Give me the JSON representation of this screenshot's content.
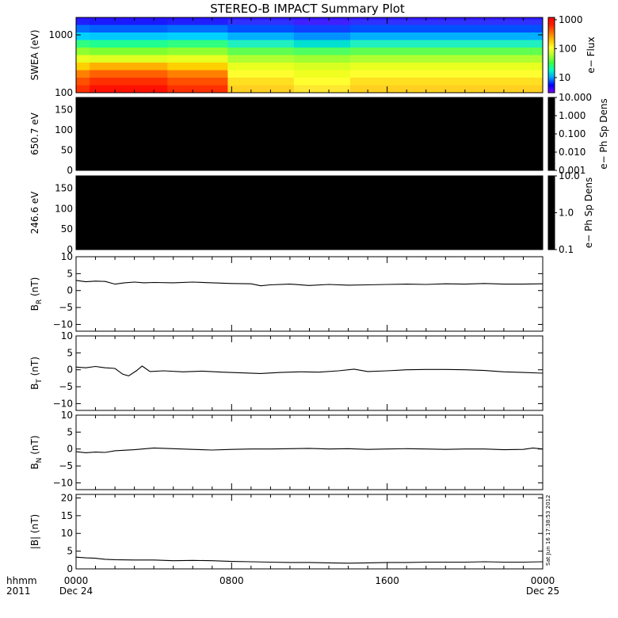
{
  "title": "STEREO-B IMPACT Summary Plot",
  "timestamp_vertical": "Sat Jun 16 17:38:53 2012",
  "time_axis": {
    "row1_label": "hhmm",
    "row2_label": "2011",
    "ticks": [
      {
        "t": 0,
        "label": "0000",
        "sublabel": "Dec 24"
      },
      {
        "t": 8,
        "label": "0800",
        "sublabel": ""
      },
      {
        "t": 16,
        "label": "1600",
        "sublabel": ""
      },
      {
        "t": 24,
        "label": "0000",
        "sublabel": "Dec 25"
      }
    ],
    "range_hours": [
      0,
      24
    ]
  },
  "colors": {
    "line": "#000000",
    "spectrogram_colormap": [
      "#7f00ff",
      "#0000ff",
      "#00a0ff",
      "#00ffc0",
      "#40ff40",
      "#b0ff30",
      "#ffff30",
      "#ffc000",
      "#ff7000",
      "#ff2000",
      "#ff0000"
    ]
  },
  "chart_data": [
    {
      "type": "heatmap",
      "ylabel": "SWEA (eV)",
      "y_scale": "log",
      "ylim": [
        100,
        2000
      ],
      "yticks": [
        "100",
        "1000"
      ],
      "colorbar": {
        "label": "e− Flux",
        "scale": "log",
        "range": [
          3,
          1200
        ],
        "ticks": [
          "10",
          "100",
          "1000"
        ]
      },
      "time_segments": [
        {
          "t": [
            0,
            0.7
          ],
          "level": "high"
        },
        {
          "t": [
            0.7,
            4.7
          ],
          "level": "very-high"
        },
        {
          "t": [
            4.7,
            7.8
          ],
          "level": "high"
        },
        {
          "t": [
            7.8,
            11.2
          ],
          "level": "medium"
        },
        {
          "t": [
            11.2,
            14.1
          ],
          "level": "medium-low"
        },
        {
          "t": [
            14.1,
            24
          ],
          "level": "medium"
        }
      ]
    },
    {
      "type": "heatmap",
      "ylabel": "650.7 eV",
      "ylim": [
        0,
        180
      ],
      "yticks": [
        "0",
        "50",
        "100",
        "150"
      ],
      "fill": "#000000",
      "colorbar": {
        "label": "e− Ph Sp Dens",
        "scale": "log",
        "range": [
          0.001,
          10
        ],
        "ticks": [
          "0.001",
          "0.010",
          "0.100",
          "1.000",
          "10.000"
        ],
        "fill": "#000000"
      }
    },
    {
      "type": "heatmap",
      "ylabel": "246.6 eV",
      "ylim": [
        0,
        180
      ],
      "yticks": [
        "0",
        "50",
        "100",
        "150"
      ],
      "fill": "#000000",
      "colorbar": {
        "label": "e− Ph Sp Dens",
        "scale": "log",
        "range": [
          0.1,
          10
        ],
        "ticks": [
          "0.1",
          "1.0",
          "10.0"
        ],
        "fill": "#000000"
      }
    },
    {
      "type": "line",
      "ylabel_main": "B",
      "ylabel_sub": "R",
      "ylabel_unit": " (nT)",
      "ylim": [
        -12,
        10
      ],
      "yticks": [
        "−10",
        "−5",
        "0",
        "5",
        "10"
      ],
      "x": [
        0,
        0.5,
        1,
        1.5,
        2,
        2.5,
        3,
        3.5,
        4,
        5,
        6,
        7,
        8,
        9,
        9.5,
        10,
        11,
        12,
        13,
        14,
        15,
        16,
        17,
        18,
        19,
        20,
        21,
        22,
        23,
        24
      ],
      "y": [
        3.0,
        2.6,
        2.8,
        2.7,
        1.9,
        2.3,
        2.5,
        2.3,
        2.4,
        2.3,
        2.5,
        2.3,
        2.1,
        2.0,
        1.4,
        1.7,
        1.9,
        1.5,
        1.8,
        1.6,
        1.7,
        1.8,
        1.9,
        1.8,
        2.0,
        1.9,
        2.1,
        1.9,
        1.9,
        2.0
      ]
    },
    {
      "type": "line",
      "ylabel_main": "B",
      "ylabel_sub": "T",
      "ylabel_unit": " (nT)",
      "ylim": [
        -12,
        10
      ],
      "yticks": [
        "−10",
        "−5",
        "0",
        "5",
        "10"
      ],
      "x": [
        0,
        0.5,
        1,
        1.5,
        2,
        2.4,
        2.7,
        3.1,
        3.4,
        3.8,
        4.5,
        5.5,
        6.5,
        7.5,
        8.5,
        9.5,
        10.5,
        11.5,
        12.5,
        13.5,
        14.3,
        15,
        16,
        17,
        18,
        19,
        20,
        21,
        22,
        23,
        24
      ],
      "y": [
        0.8,
        0.6,
        1.0,
        0.6,
        0.4,
        -1.3,
        -1.8,
        -0.3,
        1.1,
        -0.5,
        -0.3,
        -0.6,
        -0.4,
        -0.7,
        -0.9,
        -1.1,
        -0.8,
        -0.6,
        -0.7,
        -0.3,
        0.2,
        -0.5,
        -0.3,
        0.0,
        0.1,
        0.1,
        0.0,
        -0.2,
        -0.6,
        -0.8,
        -1.0
      ]
    },
    {
      "type": "line",
      "ylabel_main": "B",
      "ylabel_sub": "N",
      "ylabel_unit": " (nT)",
      "ylim": [
        -12,
        10
      ],
      "yticks": [
        "−10",
        "−5",
        "0",
        "5",
        "10"
      ],
      "x": [
        0,
        0.5,
        1,
        1.5,
        2,
        3,
        4,
        5,
        6,
        7,
        8,
        9,
        10,
        11,
        12,
        13,
        14,
        15,
        16,
        17,
        18,
        19,
        20,
        21,
        22,
        23,
        23.5,
        24
      ],
      "y": [
        -0.8,
        -1.1,
        -0.9,
        -1.0,
        -0.5,
        -0.2,
        0.3,
        0.1,
        -0.1,
        -0.3,
        -0.1,
        0.0,
        0.0,
        0.1,
        0.2,
        0.0,
        0.1,
        -0.1,
        0.0,
        0.1,
        0.0,
        -0.1,
        0.0,
        0.0,
        -0.2,
        -0.1,
        0.3,
        0.0
      ]
    },
    {
      "type": "line",
      "ylabel_main": "|B|",
      "ylabel_sub": "",
      "ylabel_unit": " (nT)",
      "ylim": [
        0,
        21
      ],
      "yticks": [
        "0",
        "5",
        "10",
        "15",
        "20"
      ],
      "x": [
        0,
        0.5,
        1,
        1.5,
        2,
        3,
        4,
        5,
        6,
        7,
        8,
        9,
        10,
        11,
        12,
        13,
        14,
        15,
        16,
        17,
        18,
        19,
        20,
        21,
        22,
        23,
        24
      ],
      "y": [
        3.3,
        3.1,
        3.0,
        2.7,
        2.6,
        2.5,
        2.5,
        2.3,
        2.4,
        2.3,
        2.1,
        2.0,
        1.9,
        1.8,
        1.8,
        1.7,
        1.6,
        1.7,
        1.8,
        1.8,
        1.9,
        1.9,
        1.9,
        2.0,
        1.9,
        1.9,
        2.0
      ]
    }
  ]
}
